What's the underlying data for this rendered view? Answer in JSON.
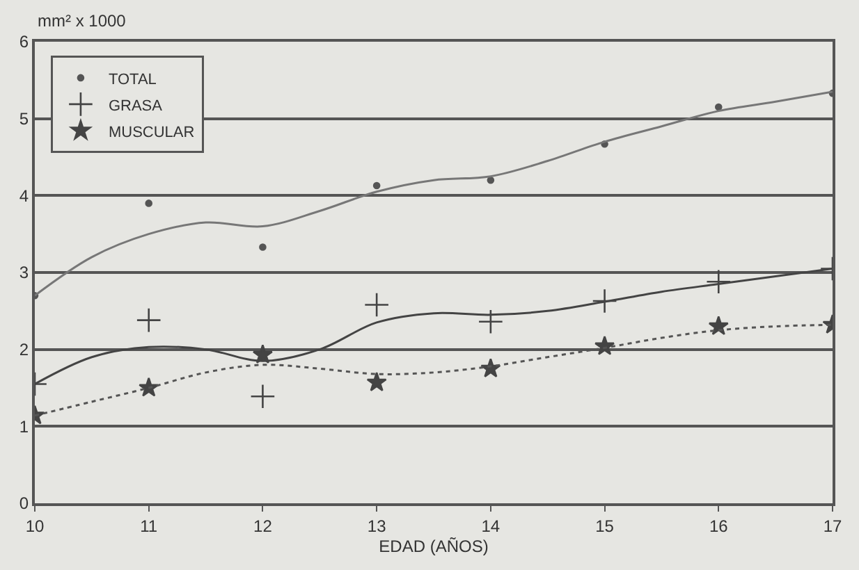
{
  "chart_data": {
    "type": "scatter",
    "xlabel": "EDAD (AÑOS)",
    "ylabel": "mm² x 1000",
    "x": [
      10,
      11,
      12,
      13,
      14,
      15,
      16,
      17
    ],
    "xlim": [
      10,
      17
    ],
    "xticks": [
      10,
      11,
      12,
      13,
      14,
      15,
      16,
      17
    ],
    "ylim": [
      0,
      6
    ],
    "yticks": [
      0,
      1,
      2,
      3,
      4,
      5,
      6
    ],
    "grid": "y",
    "legend": "top left",
    "series": [
      {
        "name": "TOTAL",
        "color": "#555555",
        "marker": "circle",
        "values": [
          2.7,
          3.9,
          3.33,
          4.13,
          4.2,
          4.67,
          5.15,
          5.33
        ]
      },
      {
        "name": "GRASA",
        "color": "#444444",
        "marker": "cross",
        "values": [
          1.55,
          2.38,
          1.39,
          2.58,
          2.36,
          2.63,
          2.88,
          3.05
        ]
      },
      {
        "name": "MUSCULAR",
        "color": "#444444",
        "marker": "star",
        "values": [
          1.14,
          1.5,
          1.93,
          1.57,
          1.75,
          2.04,
          2.3,
          2.32
        ]
      },
      {
        "type": "line",
        "color": "#777777",
        "line_style": "solid",
        "x": [
          10,
          10.5,
          11,
          11.5,
          12,
          12.5,
          13,
          13.5,
          14,
          14.5,
          15,
          15.5,
          16,
          16.5,
          17
        ],
        "values": [
          2.7,
          3.2,
          3.5,
          3.65,
          3.6,
          3.8,
          4.05,
          4.2,
          4.25,
          4.45,
          4.7,
          4.9,
          5.1,
          5.22,
          5.35
        ]
      },
      {
        "type": "line",
        "color": "#444444",
        "line_style": "solid",
        "x": [
          10,
          10.5,
          11,
          11.5,
          12,
          12.5,
          13,
          13.5,
          14,
          14.5,
          15,
          15.5,
          16,
          16.5,
          17
        ],
        "values": [
          1.55,
          1.9,
          2.03,
          2.0,
          1.85,
          2.0,
          2.35,
          2.47,
          2.45,
          2.5,
          2.62,
          2.75,
          2.85,
          2.95,
          3.05
        ]
      },
      {
        "type": "line",
        "color": "#555555",
        "line_style": "dotted",
        "x": [
          10,
          10.5,
          11,
          11.5,
          12,
          12.5,
          13,
          13.5,
          14,
          14.5,
          15,
          15.5,
          16,
          16.5,
          17
        ],
        "values": [
          1.14,
          1.32,
          1.5,
          1.7,
          1.8,
          1.75,
          1.68,
          1.7,
          1.78,
          1.9,
          2.02,
          2.15,
          2.25,
          2.3,
          2.32
        ]
      }
    ]
  }
}
